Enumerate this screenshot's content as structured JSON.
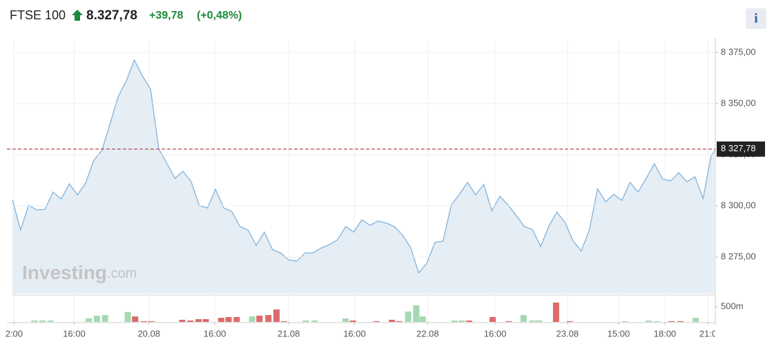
{
  "header": {
    "name": "FTSE 100",
    "price": "8.327,78",
    "change": "+39,78",
    "change_pct": "(+0,48%)",
    "info": "i"
  },
  "chart_data": {
    "type": "area",
    "values": [
      8303.0,
      8288.2,
      8300.3,
      8298.0,
      8298.3,
      8306.8,
      8303.4,
      8310.8,
      8305.4,
      8311.1,
      8322.3,
      8327.0,
      8339.9,
      8353.4,
      8361.1,
      8371.3,
      8363.5,
      8357.1,
      8328.0,
      8320.9,
      8313.5,
      8316.9,
      8311.8,
      8300.0,
      8299.0,
      8308.1,
      8299.0,
      8297.3,
      8289.9,
      8288.2,
      8280.7,
      8287.2,
      8278.7,
      8277.0,
      8273.6,
      8273.0,
      8277.0,
      8277.0,
      8279.4,
      8281.1,
      8283.4,
      8289.9,
      8287.2,
      8293.2,
      8290.5,
      8292.6,
      8291.6,
      8289.9,
      8285.8,
      8279.7,
      8267.2,
      8272.0,
      8282.1,
      8282.8,
      8300.3,
      8305.7,
      8311.5,
      8305.4,
      8310.5,
      8297.6,
      8304.7,
      8300.3,
      8295.3,
      8289.9,
      8288.5,
      8280.1,
      8289.9,
      8297.0,
      8291.9,
      8282.8,
      8278.0,
      8288.2,
      8308.4,
      8302.0,
      8305.7,
      8302.7,
      8311.5,
      8306.8,
      8313.5,
      8320.6,
      8313.2,
      8312.2,
      8316.2,
      8311.8,
      8314.2,
      8303.7,
      8324.7,
      8329.7,
      8332.1,
      8327.78
    ],
    "color": "#80b3dc",
    "fill": "#e5edf5",
    "xlim": [
      0,
      86.5
    ],
    "xticks": [
      {
        "value": 0.2,
        "label": "2:00"
      },
      {
        "value": 7.6,
        "label": "16:00"
      },
      {
        "value": 16.8,
        "label": "20.08"
      },
      {
        "value": 24.9,
        "label": "16:00"
      },
      {
        "value": 34.0,
        "label": "21.08"
      },
      {
        "value": 42.1,
        "label": "16:00"
      },
      {
        "value": 51.1,
        "label": "22.08"
      },
      {
        "value": 59.4,
        "label": "16:00"
      },
      {
        "value": 68.3,
        "label": "23.08"
      },
      {
        "value": 74.6,
        "label": "15:00"
      },
      {
        "value": 80.3,
        "label": "18:00"
      },
      {
        "value": 85.6,
        "label": "21:0"
      }
    ],
    "ylim": [
      8257.1,
      8381.1
    ],
    "yticks": [
      {
        "value": 8275,
        "label": "8 275,00"
      },
      {
        "value": 8300,
        "label": "8 300,00"
      },
      {
        "value": 8325,
        "label": "8 325,00"
      },
      {
        "value": 8350,
        "label": "8 350,00"
      },
      {
        "value": 8375,
        "label": "8 375,00"
      }
    ],
    "grid": true,
    "current_price": {
      "value": 8327.78,
      "label": "8 327,78",
      "color": "#a33a3a"
    },
    "watermark": [
      "Investing",
      ".com"
    ],
    "volume": {
      "x": [
        2.7,
        3.7,
        4.7,
        9.4,
        10.4,
        11.4,
        14.2,
        15.1,
        16.2,
        17.1,
        20.9,
        21.9,
        22.9,
        23.8,
        25.7,
        26.6,
        27.6,
        29.5,
        30.4,
        31.5,
        32.5,
        33.4,
        36.1,
        37.2,
        41.0,
        41.9,
        44.8,
        46.7,
        47.6,
        48.7,
        49.7,
        50.5,
        54.4,
        55.3,
        56.2,
        59.1,
        61.1,
        62.9,
        64.0,
        64.8,
        66.9,
        68.6,
        75.4,
        78.3,
        79.3,
        81.1,
        82.2,
        84.1
      ],
      "values": [
        45,
        45,
        45,
        115,
        205,
        225,
        320,
        180,
        25,
        25,
        70,
        45,
        90,
        90,
        135,
        160,
        160,
        180,
        205,
        225,
        410,
        25,
        45,
        45,
        115,
        45,
        25,
        70,
        25,
        340,
        545,
        180,
        45,
        45,
        45,
        160,
        25,
        225,
        45,
        45,
        635,
        25,
        25,
        45,
        25,
        25,
        25,
        135
      ],
      "colors": [
        "#a5d8b3",
        "#a5d8b3",
        "#a5d8b3",
        "#a5d8b3",
        "#a5d8b3",
        "#a5d8b3",
        "#a5d8b3",
        "#dc6a6a",
        "#dc6a6a",
        "#dc6a6a",
        "#dc6a6a",
        "#dc6a6a",
        "#dc6a6a",
        "#dc6a6a",
        "#dc6a6a",
        "#dc6a6a",
        "#dc6a6a",
        "#a5d8b3",
        "#dc6a6a",
        "#dc6a6a",
        "#dc6a6a",
        "#dc6a6a",
        "#a5d8b3",
        "#a5d8b3",
        "#a5d8b3",
        "#dc6a6a",
        "#dc6a6a",
        "#dc6a6a",
        "#dc6a6a",
        "#a5d8b3",
        "#a5d8b3",
        "#a5d8b3",
        "#a5d8b3",
        "#a5d8b3",
        "#dc6a6a",
        "#dc6a6a",
        "#dc6a6a",
        "#a5d8b3",
        "#a5d8b3",
        "#a5d8b3",
        "#dc6a6a",
        "#dc6a6a",
        "#a5d8b3",
        "#a5d8b3",
        "#a5d8b3",
        "#dc6a6a",
        "#dc6a6a",
        "#a5d8b3"
      ],
      "ylim": [
        0,
        860
      ],
      "yticks": [
        {
          "value": 500,
          "label": "500m"
        }
      ]
    }
  }
}
